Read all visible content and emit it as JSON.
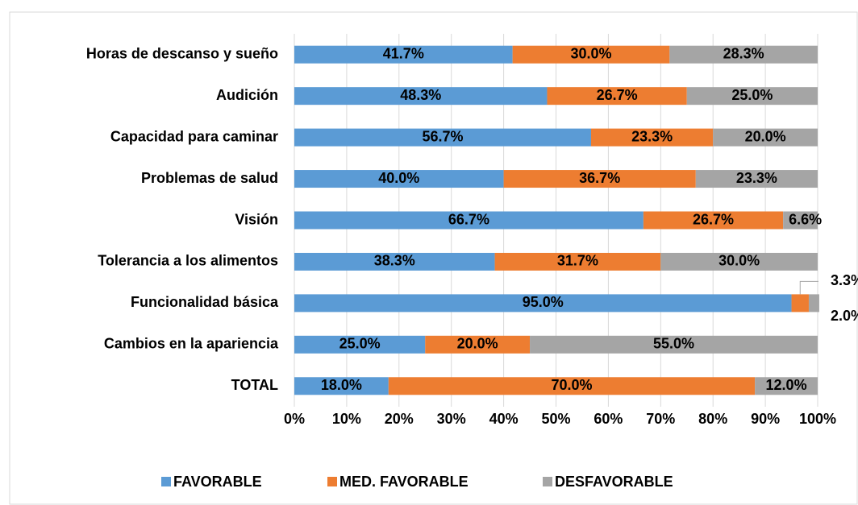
{
  "chart_data": {
    "type": "stacked_bar_horizontal",
    "categories": [
      "Horas de descanso y sueño",
      "Audición",
      "Capacidad para caminar",
      "Problemas de salud",
      "Visión",
      "Tolerancia a los alimentos",
      "Funcionalidad básica",
      "Cambios en la apariencia",
      "TOTAL"
    ],
    "series": [
      {
        "name": "FAVORABLE",
        "color": "#5b9bd5",
        "values": [
          41.7,
          48.3,
          56.7,
          40.0,
          66.7,
          38.3,
          95.0,
          25.0,
          18.0
        ],
        "value_labels": [
          "41.7%",
          "48.3%",
          "56.7%",
          "40.0%",
          "66.7%",
          "38.3%",
          "95.0%",
          "25.0%",
          "18.0%"
        ]
      },
      {
        "name": "MED. FAVORABLE",
        "color": "#ed7d31",
        "values": [
          30.0,
          26.7,
          23.3,
          36.7,
          26.7,
          31.7,
          3.3,
          20.0,
          70.0
        ],
        "value_labels": [
          "30.0%",
          "26.7%",
          "23.3%",
          "36.7%",
          "26.7%",
          "31.7%",
          "3.3%",
          "20.0%",
          "70.0%"
        ]
      },
      {
        "name": "DESFAVORABLE",
        "color": "#a5a5a5",
        "values": [
          28.3,
          25.0,
          20.0,
          23.3,
          6.6,
          30.0,
          2.0,
          55.0,
          12.0
        ],
        "value_labels": [
          "28.3%",
          "25.0%",
          "20.0%",
          "23.3%",
          "6.6%",
          "30.0%",
          "2.0%",
          "55.0%",
          "12.0%"
        ]
      }
    ],
    "xlim": [
      0,
      100
    ],
    "xticks": [
      {
        "value": 0,
        "label": "0%"
      },
      {
        "value": 10,
        "label": "10%"
      },
      {
        "value": 20,
        "label": "20%"
      },
      {
        "value": 30,
        "label": "30%"
      },
      {
        "value": 40,
        "label": "40%"
      },
      {
        "value": 50,
        "label": "50%"
      },
      {
        "value": 60,
        "label": "60%"
      },
      {
        "value": 70,
        "label": "70%"
      },
      {
        "value": 80,
        "label": "80%"
      },
      {
        "value": 90,
        "label": "90%"
      },
      {
        "value": 100,
        "label": "100%"
      }
    ],
    "grid": true,
    "legend": "bottom"
  }
}
